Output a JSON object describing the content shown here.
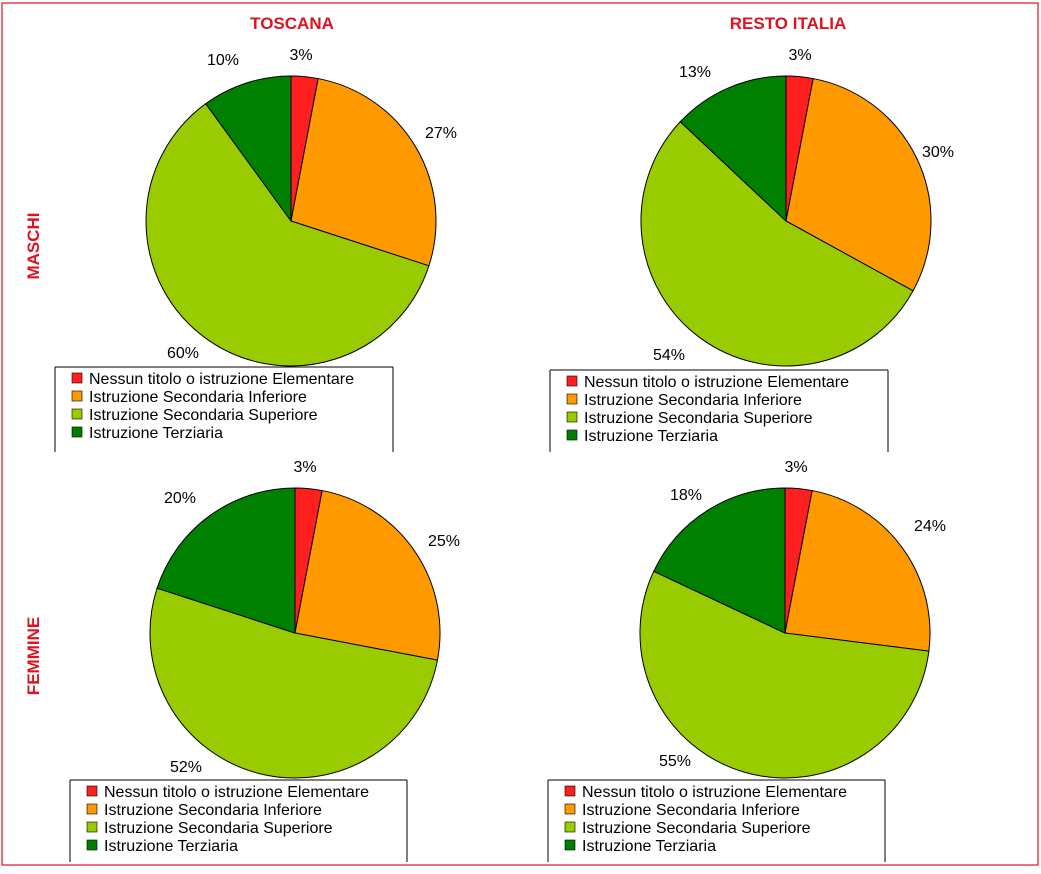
{
  "headers": {
    "col_left": "TOSCANA",
    "col_right": "RESTO ITALIA",
    "row_top": "MASCHI",
    "row_bottom": "FEMMINE"
  },
  "legend": [
    {
      "label": "Nessun titolo o istruzione Elementare",
      "color": "#ff1f1f"
    },
    {
      "label": "Istruzione Secondaria Inferiore",
      "color": "#ff9900"
    },
    {
      "label": "Istruzione Secondaria Superiore",
      "color": "#99cc00"
    },
    {
      "label": "Istruzione Terziaria",
      "color": "#008000"
    }
  ],
  "chart_data": [
    {
      "type": "pie",
      "title": "TOSCANA — MASCHI",
      "labels": [
        "Nessun titolo o istruzione Elementare",
        "Istruzione Secondaria Inferiore",
        "Istruzione Secondaria Superiore",
        "Istruzione Terziaria"
      ],
      "values": [
        3,
        27,
        60,
        10
      ],
      "value_labels": [
        "3%",
        "27%",
        "60%",
        "10%"
      ]
    },
    {
      "type": "pie",
      "title": "RESTO ITALIA — MASCHI",
      "labels": [
        "Nessun titolo o istruzione Elementare",
        "Istruzione Secondaria Inferiore",
        "Istruzione Secondaria Superiore",
        "Istruzione Terziaria"
      ],
      "values": [
        3,
        30,
        54,
        13
      ],
      "value_labels": [
        "3%",
        "30%",
        "54%",
        "13%"
      ]
    },
    {
      "type": "pie",
      "title": "TOSCANA — FEMMINE",
      "labels": [
        "Nessun titolo o istruzione Elementare",
        "Istruzione Secondaria Inferiore",
        "Istruzione Secondaria Superiore",
        "Istruzione Terziaria"
      ],
      "values": [
        3,
        25,
        52,
        20
      ],
      "value_labels": [
        "3%",
        "25%",
        "52%",
        "20%"
      ]
    },
    {
      "type": "pie",
      "title": "RESTO ITALIA — FEMMINE",
      "labels": [
        "Nessun titolo o istruzione Elementare",
        "Istruzione Secondaria Inferiore",
        "Istruzione Secondaria Superiore",
        "Istruzione Terziaria"
      ],
      "values": [
        3,
        24,
        55,
        18
      ],
      "value_labels": [
        "3%",
        "24%",
        "55%",
        "18%"
      ]
    }
  ]
}
